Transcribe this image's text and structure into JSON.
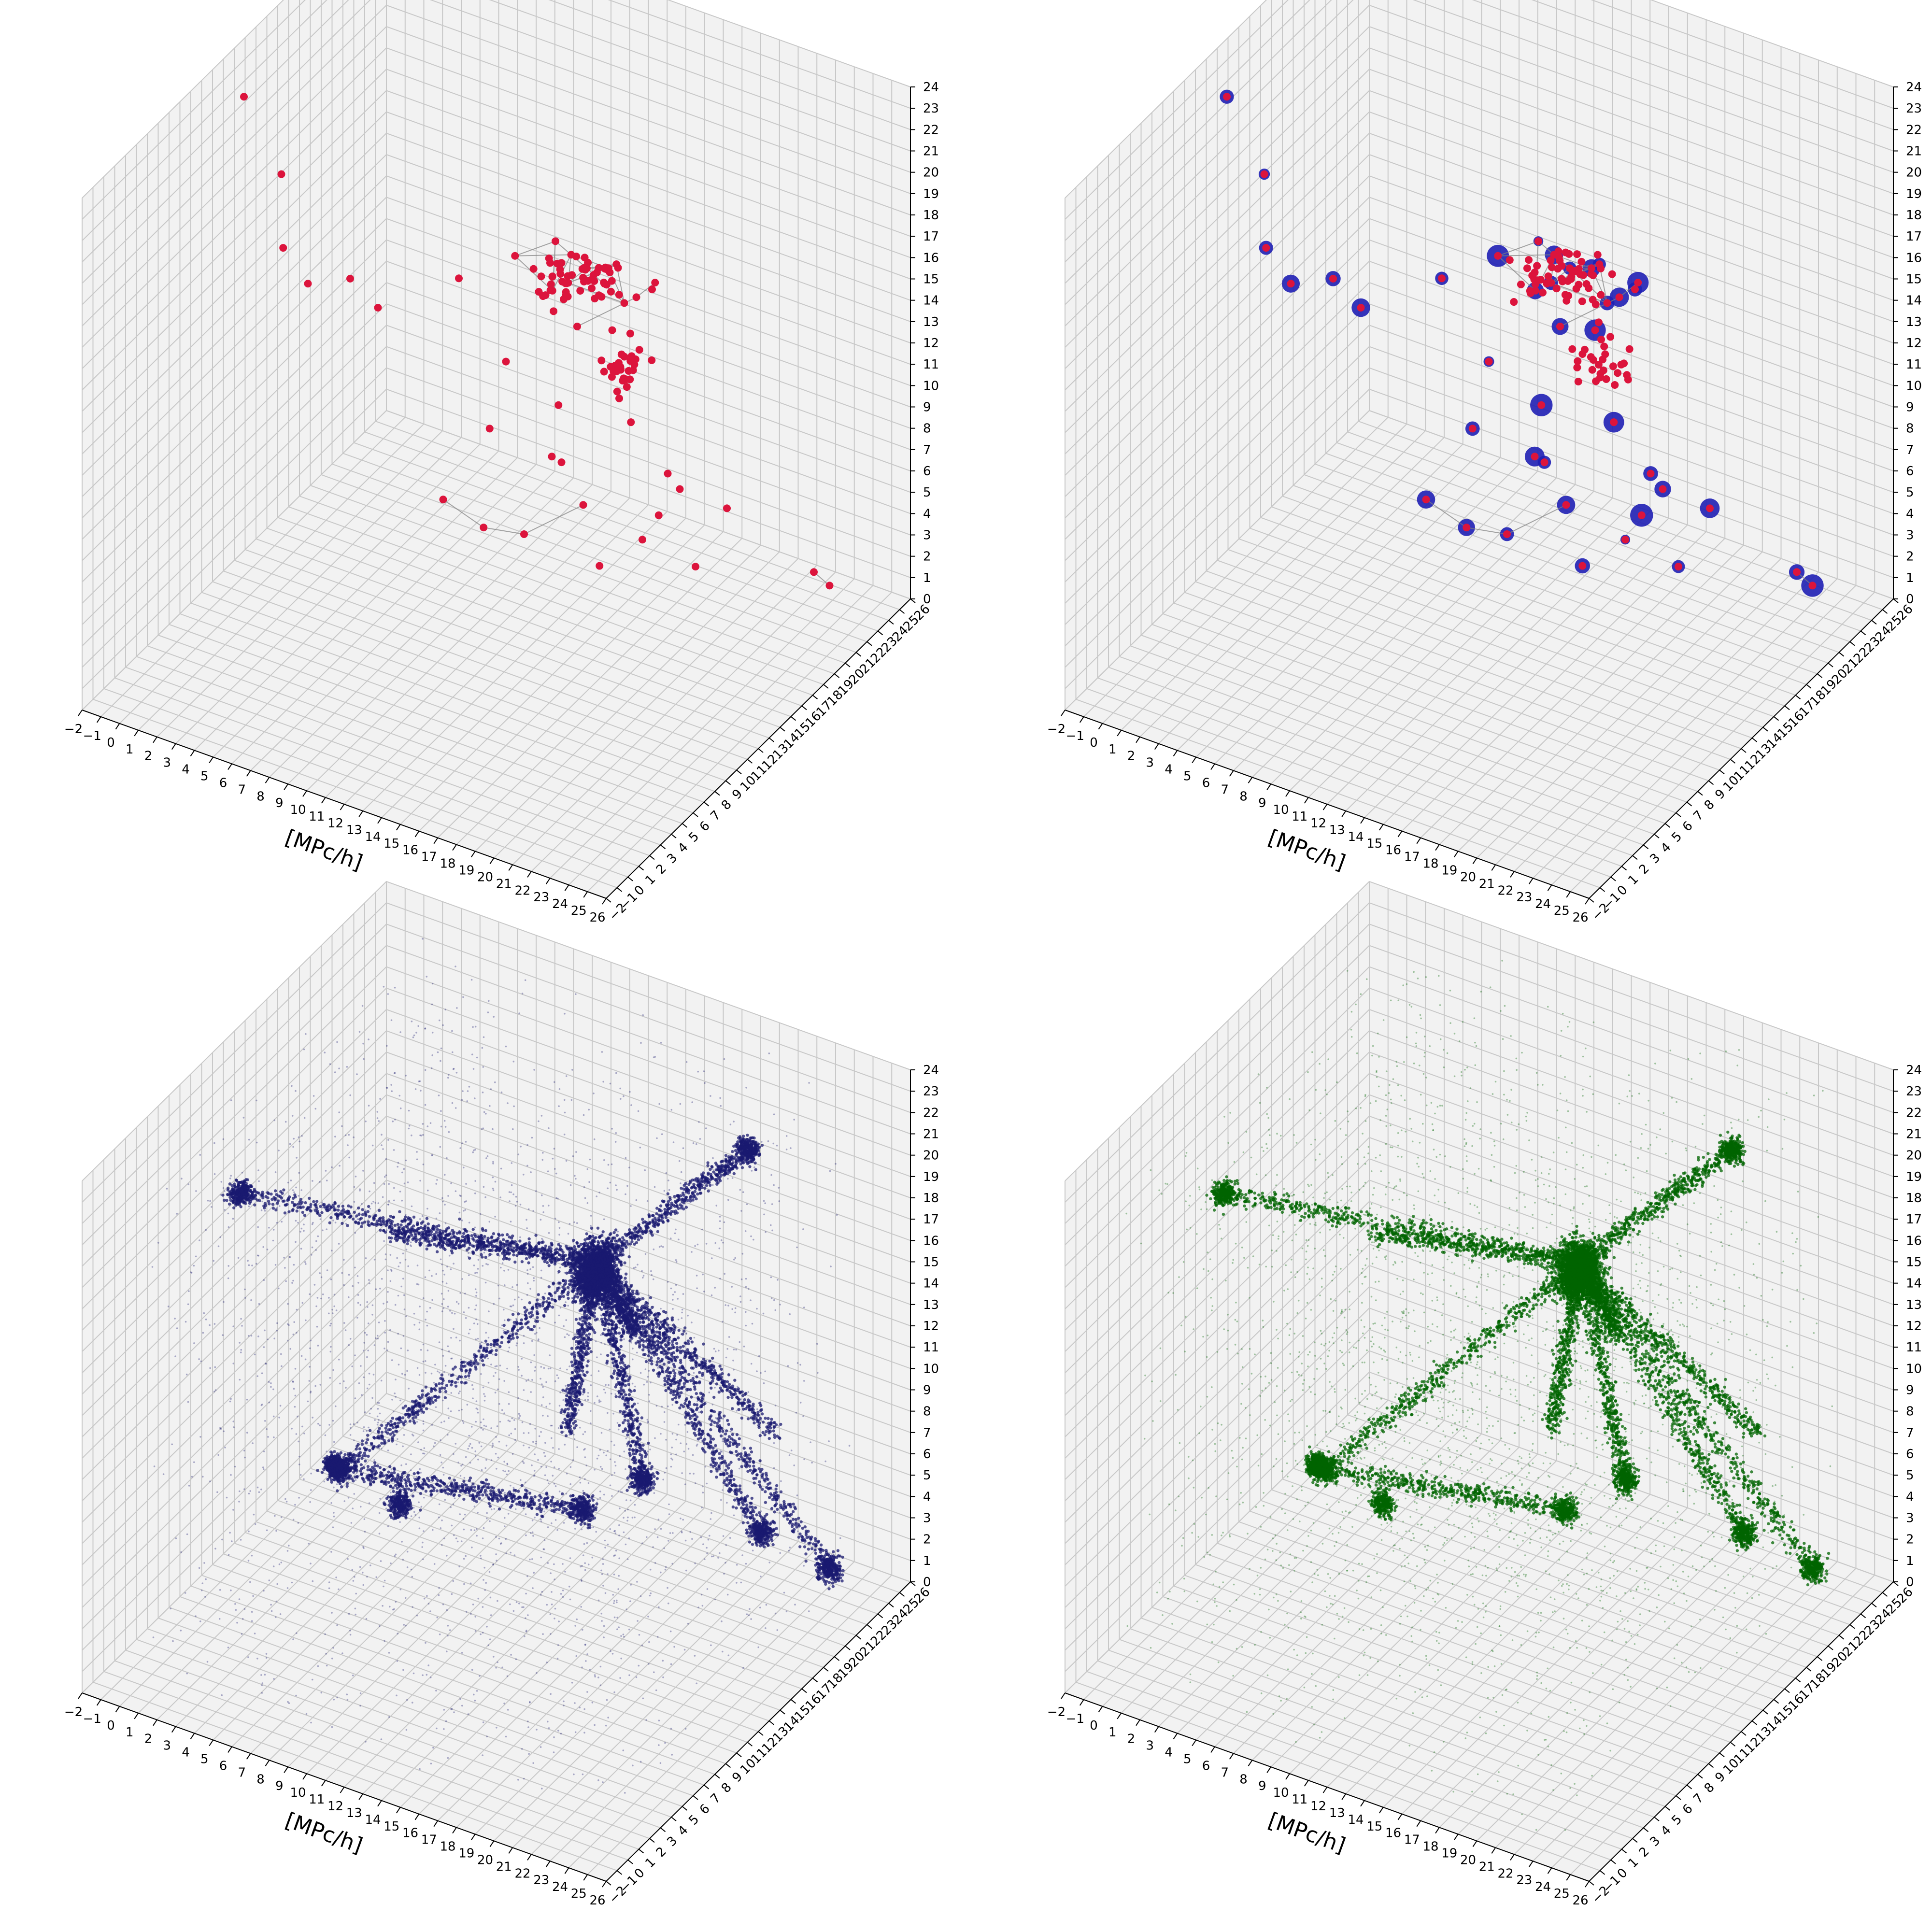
{
  "figure": {
    "background": "#ffffff",
    "pane_color": "#f2f2f2",
    "grid_color": "#c8c8c8",
    "edge_color": "#808080"
  },
  "chart_data": [
    {
      "type": "scatter",
      "panel": "top-left",
      "xlabel": "[MPc/h]",
      "xticks": [
        -2,
        -1,
        0,
        1,
        2,
        3,
        4,
        5,
        6,
        7,
        8,
        9,
        10,
        11,
        12,
        13,
        14,
        15,
        16,
        17,
        18,
        19,
        20,
        21,
        22,
        23,
        24,
        25,
        26
      ],
      "yticks": [
        -2,
        -1,
        0,
        1,
        2,
        3,
        4,
        5,
        6,
        7,
        8,
        9,
        10,
        11,
        12,
        13,
        14,
        15,
        16,
        17,
        18,
        19,
        20,
        21,
        22,
        23,
        24,
        25,
        26
      ],
      "zticks": [
        0,
        1,
        2,
        3,
        4,
        5,
        6,
        7,
        8,
        9,
        10,
        11,
        12,
        13,
        14,
        15,
        16,
        17,
        18,
        19,
        20,
        21,
        22,
        23,
        24
      ],
      "xlim": [
        -2,
        26
      ],
      "ylim": [
        -2,
        26
      ],
      "zlim": [
        0,
        24
      ],
      "grid": true,
      "series": [
        {
          "kind": "nodes-with-links",
          "color": "#dc143c",
          "link_color": "#808080",
          "points": [
            [
              18,
              10,
              21
            ],
            [
              19,
              11,
              21
            ],
            [
              18,
              12,
              20
            ],
            [
              17,
              10,
              20
            ],
            [
              20,
              10,
              20
            ],
            [
              16,
              12,
              20
            ],
            [
              14,
              14,
              19
            ],
            [
              18,
              16,
              17
            ],
            [
              17,
              18,
              16
            ],
            [
              10,
              12,
              17
            ],
            [
              16,
              18,
              15
            ],
            [
              14,
              16,
              14
            ],
            [
              7,
              1,
              23
            ],
            [
              4,
              6,
              23
            ],
            [
              6,
              5,
              19
            ],
            [
              8,
              8,
              17
            ],
            [
              24,
              2,
              24
            ],
            [
              25,
              2,
              20
            ],
            [
              24,
              22,
              2
            ],
            [
              22,
              24,
              1
            ],
            [
              13,
              16,
              10
            ],
            [
              12,
              18,
              6
            ],
            [
              8,
              24,
              2
            ],
            [
              7,
              20,
              5
            ],
            [
              12,
              20,
              3
            ],
            [
              14,
              22,
              1
            ],
            [
              10,
              18,
              2
            ],
            [
              9,
              16,
              3
            ],
            [
              8,
              14,
              5
            ],
            [
              18,
              20,
              2
            ],
            [
              16,
              22,
              4
            ],
            [
              20,
              14,
              10
            ],
            [
              22,
              16,
              8
            ],
            [
              10,
              2,
              22
            ],
            [
              2,
              6,
              26
            ],
            [
              23,
              8,
              12
            ],
            [
              21,
              6,
              10
            ],
            [
              15,
              12,
              18
            ],
            [
              13,
              12,
              19
            ],
            [
              16,
              6,
              18
            ]
          ]
        }
      ]
    },
    {
      "type": "scatter",
      "panel": "top-right",
      "xlabel": "[MPc/h]",
      "xticks": [
        -2,
        -1,
        0,
        1,
        2,
        3,
        4,
        5,
        6,
        7,
        8,
        9,
        10,
        11,
        12,
        13,
        14,
        15,
        16,
        17,
        18,
        19,
        20,
        21,
        22,
        23,
        24,
        25,
        26
      ],
      "yticks": [
        -2,
        -1,
        0,
        1,
        2,
        3,
        4,
        5,
        6,
        7,
        8,
        9,
        10,
        11,
        12,
        13,
        14,
        15,
        16,
        17,
        18,
        19,
        20,
        21,
        22,
        23,
        24,
        25,
        26
      ],
      "zticks": [
        0,
        1,
        2,
        3,
        4,
        5,
        6,
        7,
        8,
        9,
        10,
        11,
        12,
        13,
        14,
        15,
        16,
        17,
        18,
        19,
        20,
        21,
        22,
        23,
        24
      ],
      "xlim": [
        -2,
        26
      ],
      "ylim": [
        -2,
        26
      ],
      "zlim": [
        0,
        24
      ],
      "grid": true,
      "series": [
        {
          "kind": "halos",
          "color": "#1f1fb4"
        },
        {
          "kind": "nodes-with-links",
          "color": "#dc143c",
          "link_color": "#808080",
          "points": [
            [
              18,
              10,
              21
            ],
            [
              19,
              11,
              21
            ],
            [
              18,
              12,
              20
            ],
            [
              17,
              10,
              20
            ],
            [
              20,
              10,
              20
            ],
            [
              16,
              12,
              20
            ],
            [
              14,
              14,
              19
            ],
            [
              18,
              16,
              17
            ],
            [
              17,
              18,
              16
            ],
            [
              10,
              12,
              17
            ],
            [
              16,
              18,
              15
            ],
            [
              14,
              16,
              14
            ],
            [
              7,
              1,
              23
            ],
            [
              4,
              6,
              23
            ],
            [
              6,
              5,
              19
            ],
            [
              8,
              8,
              17
            ],
            [
              24,
              2,
              24
            ],
            [
              25,
              2,
              20
            ],
            [
              24,
              22,
              2
            ],
            [
              22,
              24,
              1
            ],
            [
              13,
              16,
              10
            ],
            [
              12,
              18,
              6
            ],
            [
              8,
              24,
              2
            ],
            [
              7,
              20,
              5
            ],
            [
              12,
              20,
              3
            ],
            [
              14,
              22,
              1
            ],
            [
              10,
              18,
              2
            ],
            [
              9,
              16,
              3
            ],
            [
              8,
              14,
              5
            ],
            [
              18,
              20,
              2
            ],
            [
              16,
              22,
              4
            ],
            [
              20,
              14,
              10
            ],
            [
              22,
              16,
              8
            ],
            [
              10,
              2,
              22
            ],
            [
              2,
              6,
              26
            ],
            [
              23,
              8,
              12
            ],
            [
              21,
              6,
              10
            ],
            [
              15,
              12,
              18
            ],
            [
              13,
              12,
              19
            ],
            [
              16,
              6,
              18
            ]
          ]
        }
      ]
    },
    {
      "type": "scatter",
      "panel": "bottom-left",
      "xlabel": "[MPc/h]",
      "xticks": [
        -2,
        -1,
        0,
        1,
        2,
        3,
        4,
        5,
        6,
        7,
        8,
        9,
        10,
        11,
        12,
        13,
        14,
        15,
        16,
        17,
        18,
        19,
        20,
        21,
        22,
        23,
        24,
        25,
        26
      ],
      "yticks": [
        -2,
        -1,
        0,
        1,
        2,
        3,
        4,
        5,
        6,
        7,
        8,
        9,
        10,
        11,
        12,
        13,
        14,
        15,
        16,
        17,
        18,
        19,
        20,
        21,
        22,
        23,
        24,
        25,
        26
      ],
      "zticks": [
        0,
        1,
        2,
        3,
        4,
        5,
        6,
        7,
        8,
        9,
        10,
        11,
        12,
        13,
        14,
        15,
        16,
        17,
        18,
        19,
        20,
        21,
        22,
        23,
        24
      ],
      "xlim": [
        -2,
        26
      ],
      "ylim": [
        -2,
        26
      ],
      "zlim": [
        0,
        24
      ],
      "grid": true,
      "series": [
        {
          "kind": "particles",
          "color": "#191970"
        }
      ]
    },
    {
      "type": "scatter",
      "panel": "bottom-right",
      "xlabel": "[MPc/h]",
      "xticks": [
        -2,
        -1,
        0,
        1,
        2,
        3,
        4,
        5,
        6,
        7,
        8,
        9,
        10,
        11,
        12,
        13,
        14,
        15,
        16,
        17,
        18,
        19,
        20,
        21,
        22,
        23,
        24,
        25,
        26
      ],
      "yticks": [
        -2,
        -1,
        0,
        1,
        2,
        3,
        4,
        5,
        6,
        7,
        8,
        9,
        10,
        11,
        12,
        13,
        14,
        15,
        16,
        17,
        18,
        19,
        20,
        21,
        22,
        23,
        24,
        25,
        26
      ],
      "zticks": [
        0,
        1,
        2,
        3,
        4,
        5,
        6,
        7,
        8,
        9,
        10,
        11,
        12,
        13,
        14,
        15,
        16,
        17,
        18,
        19,
        20,
        21,
        22,
        23,
        24
      ],
      "xlim": [
        -2,
        26
      ],
      "ylim": [
        -2,
        26
      ],
      "zlim": [
        0,
        24
      ],
      "grid": true,
      "series": [
        {
          "kind": "particles",
          "color": "#006400"
        }
      ]
    }
  ]
}
